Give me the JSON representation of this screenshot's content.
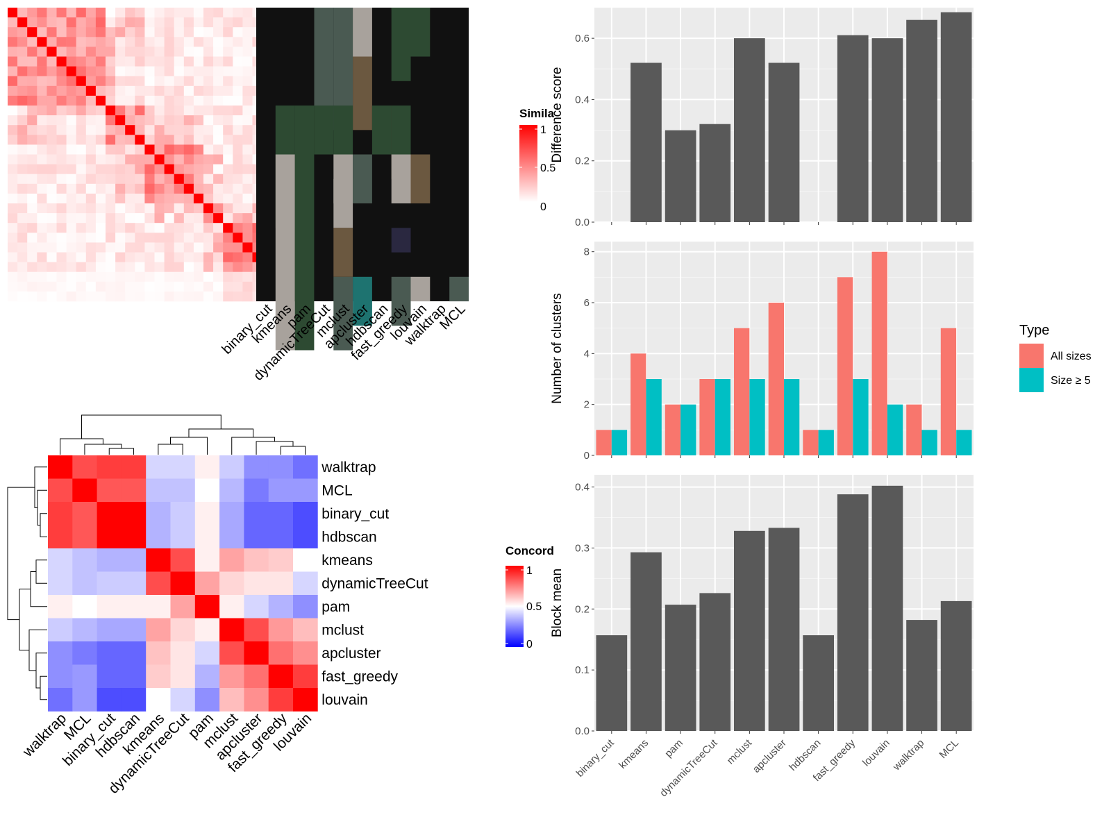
{
  "methods": [
    "binary_cut",
    "kmeans",
    "pam",
    "dynamicTreeCut",
    "mclust",
    "apcluster",
    "hdbscan",
    "fast_greedy",
    "louvain",
    "walktrap",
    "MCL"
  ],
  "top_heatmap": {
    "legend_title": "Simila",
    "legend_ticks": [
      "1",
      "0.5",
      "0"
    ],
    "colors": {
      "high": "#ff0000",
      "low": "#ffffff",
      "membership_bg": "#111111"
    }
  },
  "concordance_heatmap": {
    "legend_title": "Concord",
    "legend_ticks": [
      "1",
      "0.5",
      "0"
    ],
    "row_order": [
      "walktrap",
      "MCL",
      "binary_cut",
      "hdbscan",
      "kmeans",
      "dynamicTreeCut",
      "pam",
      "mclust",
      "apcluster",
      "fast_greedy",
      "louvain"
    ],
    "colors": {
      "high": "#ff0000",
      "mid": "#ffffff",
      "low": "#0000ff"
    },
    "values": [
      [
        1.0,
        0.85,
        0.88,
        0.88,
        0.42,
        0.42,
        0.53,
        0.4,
        0.28,
        0.28,
        0.22
      ],
      [
        0.85,
        1.0,
        0.83,
        0.83,
        0.38,
        0.38,
        0.5,
        0.36,
        0.24,
        0.3,
        0.3
      ],
      [
        0.88,
        0.83,
        1.0,
        1.0,
        0.35,
        0.4,
        0.53,
        0.33,
        0.2,
        0.2,
        0.15
      ],
      [
        0.88,
        0.83,
        1.0,
        1.0,
        0.35,
        0.4,
        0.53,
        0.33,
        0.2,
        0.2,
        0.15
      ],
      [
        0.42,
        0.38,
        0.35,
        0.35,
        1.0,
        0.85,
        0.53,
        0.68,
        0.62,
        0.6,
        0.5
      ],
      [
        0.42,
        0.38,
        0.4,
        0.4,
        0.85,
        1.0,
        0.68,
        0.58,
        0.55,
        0.55,
        0.42
      ],
      [
        0.53,
        0.5,
        0.53,
        0.53,
        0.53,
        0.68,
        1.0,
        0.53,
        0.42,
        0.35,
        0.28
      ],
      [
        0.4,
        0.36,
        0.33,
        0.33,
        0.68,
        0.58,
        0.53,
        1.0,
        0.85,
        0.7,
        0.63
      ],
      [
        0.28,
        0.24,
        0.2,
        0.2,
        0.62,
        0.55,
        0.42,
        0.85,
        1.0,
        0.78,
        0.72
      ],
      [
        0.28,
        0.3,
        0.2,
        0.2,
        0.6,
        0.55,
        0.35,
        0.7,
        0.78,
        1.0,
        0.88
      ],
      [
        0.22,
        0.3,
        0.15,
        0.15,
        0.5,
        0.42,
        0.28,
        0.63,
        0.72,
        0.88,
        1.0
      ]
    ]
  },
  "chart_data": [
    {
      "type": "bar",
      "categories": [
        "binary_cut",
        "kmeans",
        "pam",
        "dynamicTreeCut",
        "mclust",
        "apcluster",
        "hdbscan",
        "fast_greedy",
        "louvain",
        "walktrap",
        "MCL"
      ],
      "values": [
        0,
        0.52,
        0.3,
        0.32,
        0.6,
        0.52,
        0,
        0.61,
        0.6,
        0.66,
        0.685
      ],
      "xlabel": "",
      "ylabel": "Difference score",
      "ylim": [
        0,
        0.7
      ],
      "yticks": [
        "0.0",
        "0.2",
        "0.4",
        "0.6"
      ],
      "color": "#595959",
      "grid": true
    },
    {
      "type": "bar",
      "categories": [
        "binary_cut",
        "kmeans",
        "pam",
        "dynamicTreeCut",
        "mclust",
        "apcluster",
        "hdbscan",
        "fast_greedy",
        "louvain",
        "walktrap",
        "MCL"
      ],
      "series": [
        {
          "name": "All sizes",
          "values": [
            1,
            4,
            2,
            3,
            5,
            6,
            1,
            7,
            8,
            2,
            5
          ],
          "color": "#f8766d"
        },
        {
          "name": "Size ≥ 5",
          "values": [
            1,
            3,
            2,
            3,
            3,
            3,
            1,
            3,
            2,
            1,
            1
          ],
          "color": "#00bfc4"
        }
      ],
      "xlabel": "",
      "ylabel": "Number of clusters",
      "ylim": [
        0,
        8.4
      ],
      "yticks": [
        "0",
        "2",
        "4",
        "6",
        "8"
      ],
      "legend_title": "Type",
      "legend_position": "right",
      "grid": true
    },
    {
      "type": "bar",
      "categories": [
        "binary_cut",
        "kmeans",
        "pam",
        "dynamicTreeCut",
        "mclust",
        "apcluster",
        "hdbscan",
        "fast_greedy",
        "louvain",
        "walktrap",
        "MCL"
      ],
      "values": [
        0.157,
        0.293,
        0.207,
        0.226,
        0.328,
        0.333,
        0.157,
        0.388,
        0.402,
        0.182,
        0.213
      ],
      "xlabel": "",
      "ylabel": "Block mean",
      "ylim": [
        0,
        0.42
      ],
      "yticks": [
        "0.0",
        "0.1",
        "0.2",
        "0.3",
        "0.4"
      ],
      "color": "#595959",
      "grid": true
    }
  ]
}
